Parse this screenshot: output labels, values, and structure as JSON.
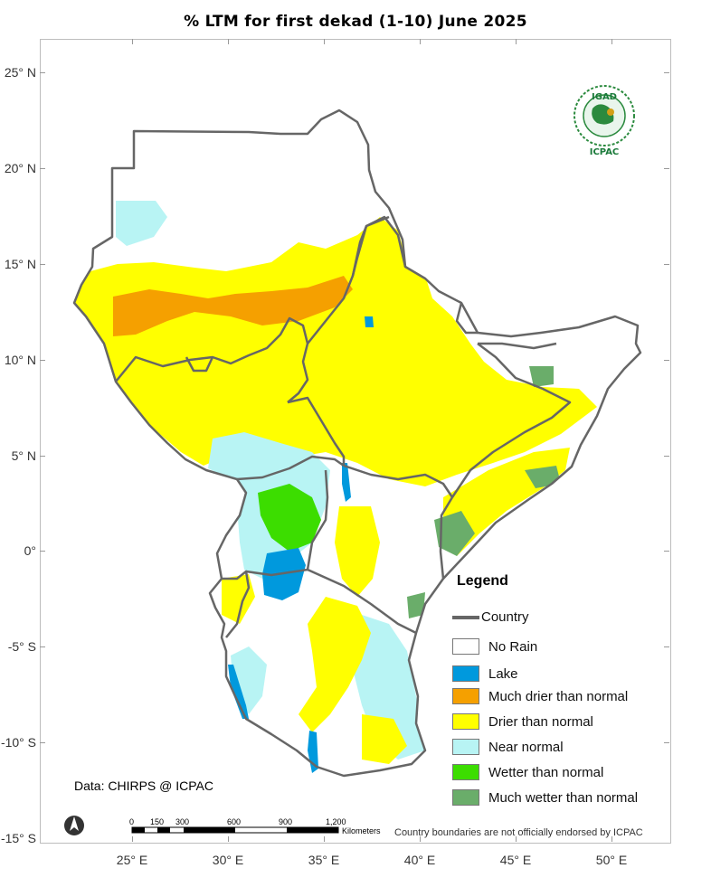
{
  "title": "% LTM  for  first dekad (1-10)  June 2025",
  "latitude_labels": [
    "25° N",
    "20° N",
    "15° N",
    "10° N",
    "5° N",
    "0°",
    "-5° S",
    "-10° S",
    "-15° S"
  ],
  "longitude_labels": [
    "25° E",
    "30° E",
    "35° E",
    "40° E",
    "45° E",
    "50° E"
  ],
  "legend": {
    "title": "Legend",
    "country_label": "Country",
    "items": [
      {
        "label": "No Rain",
        "color": "#ffffff"
      },
      {
        "label": "Lake",
        "color": "#0099dd"
      },
      {
        "label": "Much drier than normal",
        "color": "#f5a000"
      },
      {
        "label": "Drier than normal",
        "color": "#ffff00"
      },
      {
        "label": "Near normal",
        "color": "#b8f4f4"
      },
      {
        "label": "Wetter than normal",
        "color": "#3cdd00"
      },
      {
        "label": "Much wetter than normal",
        "color": "#6aad6a"
      }
    ]
  },
  "credit": "Data: CHIRPS @ ICPAC",
  "disclaimer": "Country boundaries are not officially endorsed by ICPAC",
  "scale_bar": {
    "ticks": [
      "0",
      "150",
      "300",
      "600",
      "900",
      "1,200"
    ],
    "unit": "Kilometers"
  },
  "logo": {
    "top_text": "IGAD",
    "bottom_text": "ICPAC"
  },
  "north_arrow": "N"
}
